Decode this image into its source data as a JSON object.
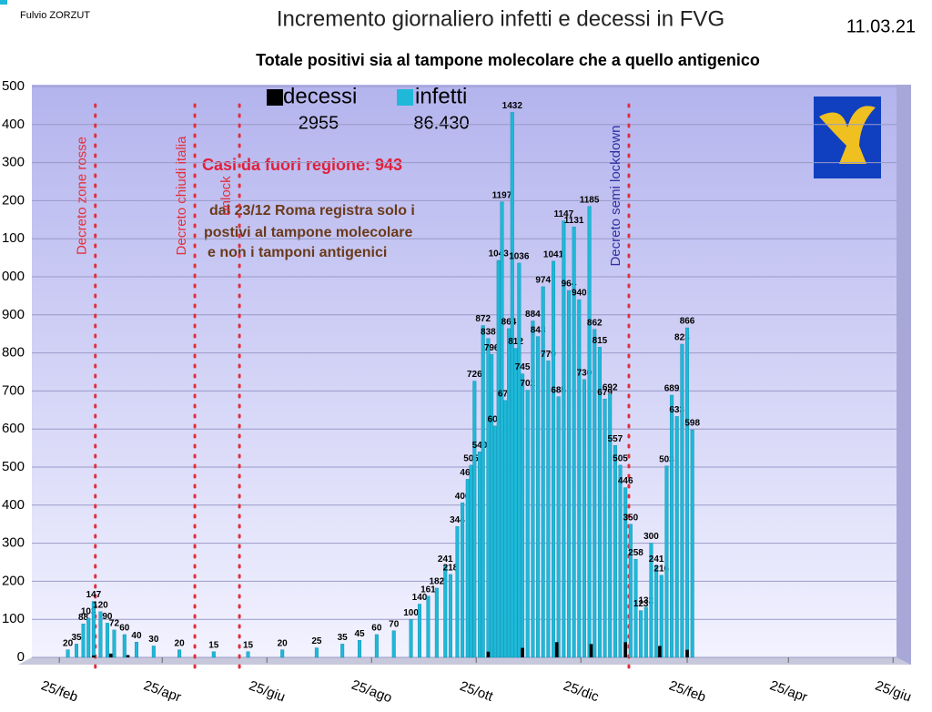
{
  "chart_data": {
    "type": "bar",
    "author": "Fulvio ZORZUT",
    "title": "Incremento giornaliero infetti e decessi in FVG",
    "date": "11.03.21",
    "subtitle": "Totale positivi sia al tampone molecolare che a quello antigenico",
    "legend_totals": [
      "2955",
      "86.430"
    ],
    "note_red": "Casi da fuori regione: 943",
    "note_lines": [
      "dal 23/12  Roma registra solo i",
      "postivi al tampone molecolare",
      "e non i tamponi antigenici"
    ],
    "annotations": [
      {
        "x": 21,
        "label": "Decreto zone rosse",
        "color": "#e0303a"
      },
      {
        "x": 79,
        "label": "Decreto chiudi italia",
        "color": "#e0303a"
      },
      {
        "x": 105,
        "label": "unlock",
        "color": "#e0303a"
      },
      {
        "x": 332,
        "label": "Decreto semi lockdown",
        "color": "#3030a0"
      }
    ],
    "xlim": [
      -16,
      488
    ],
    "xticks": [
      {
        "value": 0,
        "label": "25/feb"
      },
      {
        "value": 60,
        "label": "25/apr"
      },
      {
        "value": 121,
        "label": "25/giu"
      },
      {
        "value": 182,
        "label": "25/ago"
      },
      {
        "value": 243,
        "label": "25/ott"
      },
      {
        "value": 304,
        "label": "25/dic"
      },
      {
        "value": 366,
        "label": "25/feb"
      },
      {
        "value": 425,
        "label": "25/apr"
      },
      {
        "value": 486,
        "label": "25/giu"
      }
    ],
    "ylim": [
      0,
      1500
    ],
    "yticks": [
      0,
      100,
      200,
      300,
      400,
      500,
      600,
      700,
      800,
      900,
      {
        "value": 1000,
        "label": "000"
      },
      {
        "value": 1100,
        "label": "100"
      },
      {
        "value": 1200,
        "label": "200"
      },
      {
        "value": 1300,
        "label": "300"
      },
      {
        "value": 1400,
        "label": "400"
      },
      {
        "value": 1500,
        "label": "500"
      }
    ],
    "grid": true,
    "series": [
      {
        "name": "infetti",
        "color": "#1fb8d8",
        "x": [
          5,
          10,
          14,
          17,
          20,
          24,
          28,
          32,
          38,
          45,
          55,
          70,
          90,
          110,
          130,
          150,
          165,
          175,
          185,
          195,
          205,
          210,
          215,
          220,
          225,
          228,
          232,
          235,
          238,
          240,
          242,
          245,
          247,
          250,
          252,
          254,
          256,
          258,
          260,
          262,
          264,
          266,
          268,
          270,
          273,
          276,
          279,
          282,
          285,
          288,
          291,
          294,
          297,
          300,
          303,
          306,
          309,
          312,
          315,
          318,
          321,
          324,
          327,
          330,
          333,
          336,
          339,
          342,
          345,
          348,
          351,
          354,
          357,
          360,
          363,
          366,
          369
        ],
        "values": [
          20,
          35,
          88,
          103,
          147,
          120,
          90,
          72,
          60,
          40,
          30,
          20,
          15,
          15,
          20,
          25,
          35,
          45,
          60,
          70,
          100,
          140,
          161,
          182,
          241,
          218,
          344,
          406,
          468,
          505,
          726,
          540,
          872,
          838,
          796,
          608,
          1043,
          1197,
          675,
          864,
          1432,
          812,
          1036,
          745,
          702,
          884,
          843,
          974,
          779,
          1041,
          685,
          1147,
          964,
          1131,
          940,
          730,
          1185,
          862,
          815,
          679,
          692,
          557,
          505,
          446,
          350,
          258,
          123,
          132,
          300,
          241,
          216,
          503,
          689,
          633,
          823,
          866,
          598
        ]
      },
      {
        "name": "decessi",
        "color": "#000000",
        "x": [
          20,
          30,
          40,
          250,
          270,
          290,
          310,
          330,
          350,
          366
        ],
        "values": [
          5,
          10,
          6,
          15,
          25,
          40,
          35,
          40,
          30,
          20
        ]
      }
    ]
  }
}
